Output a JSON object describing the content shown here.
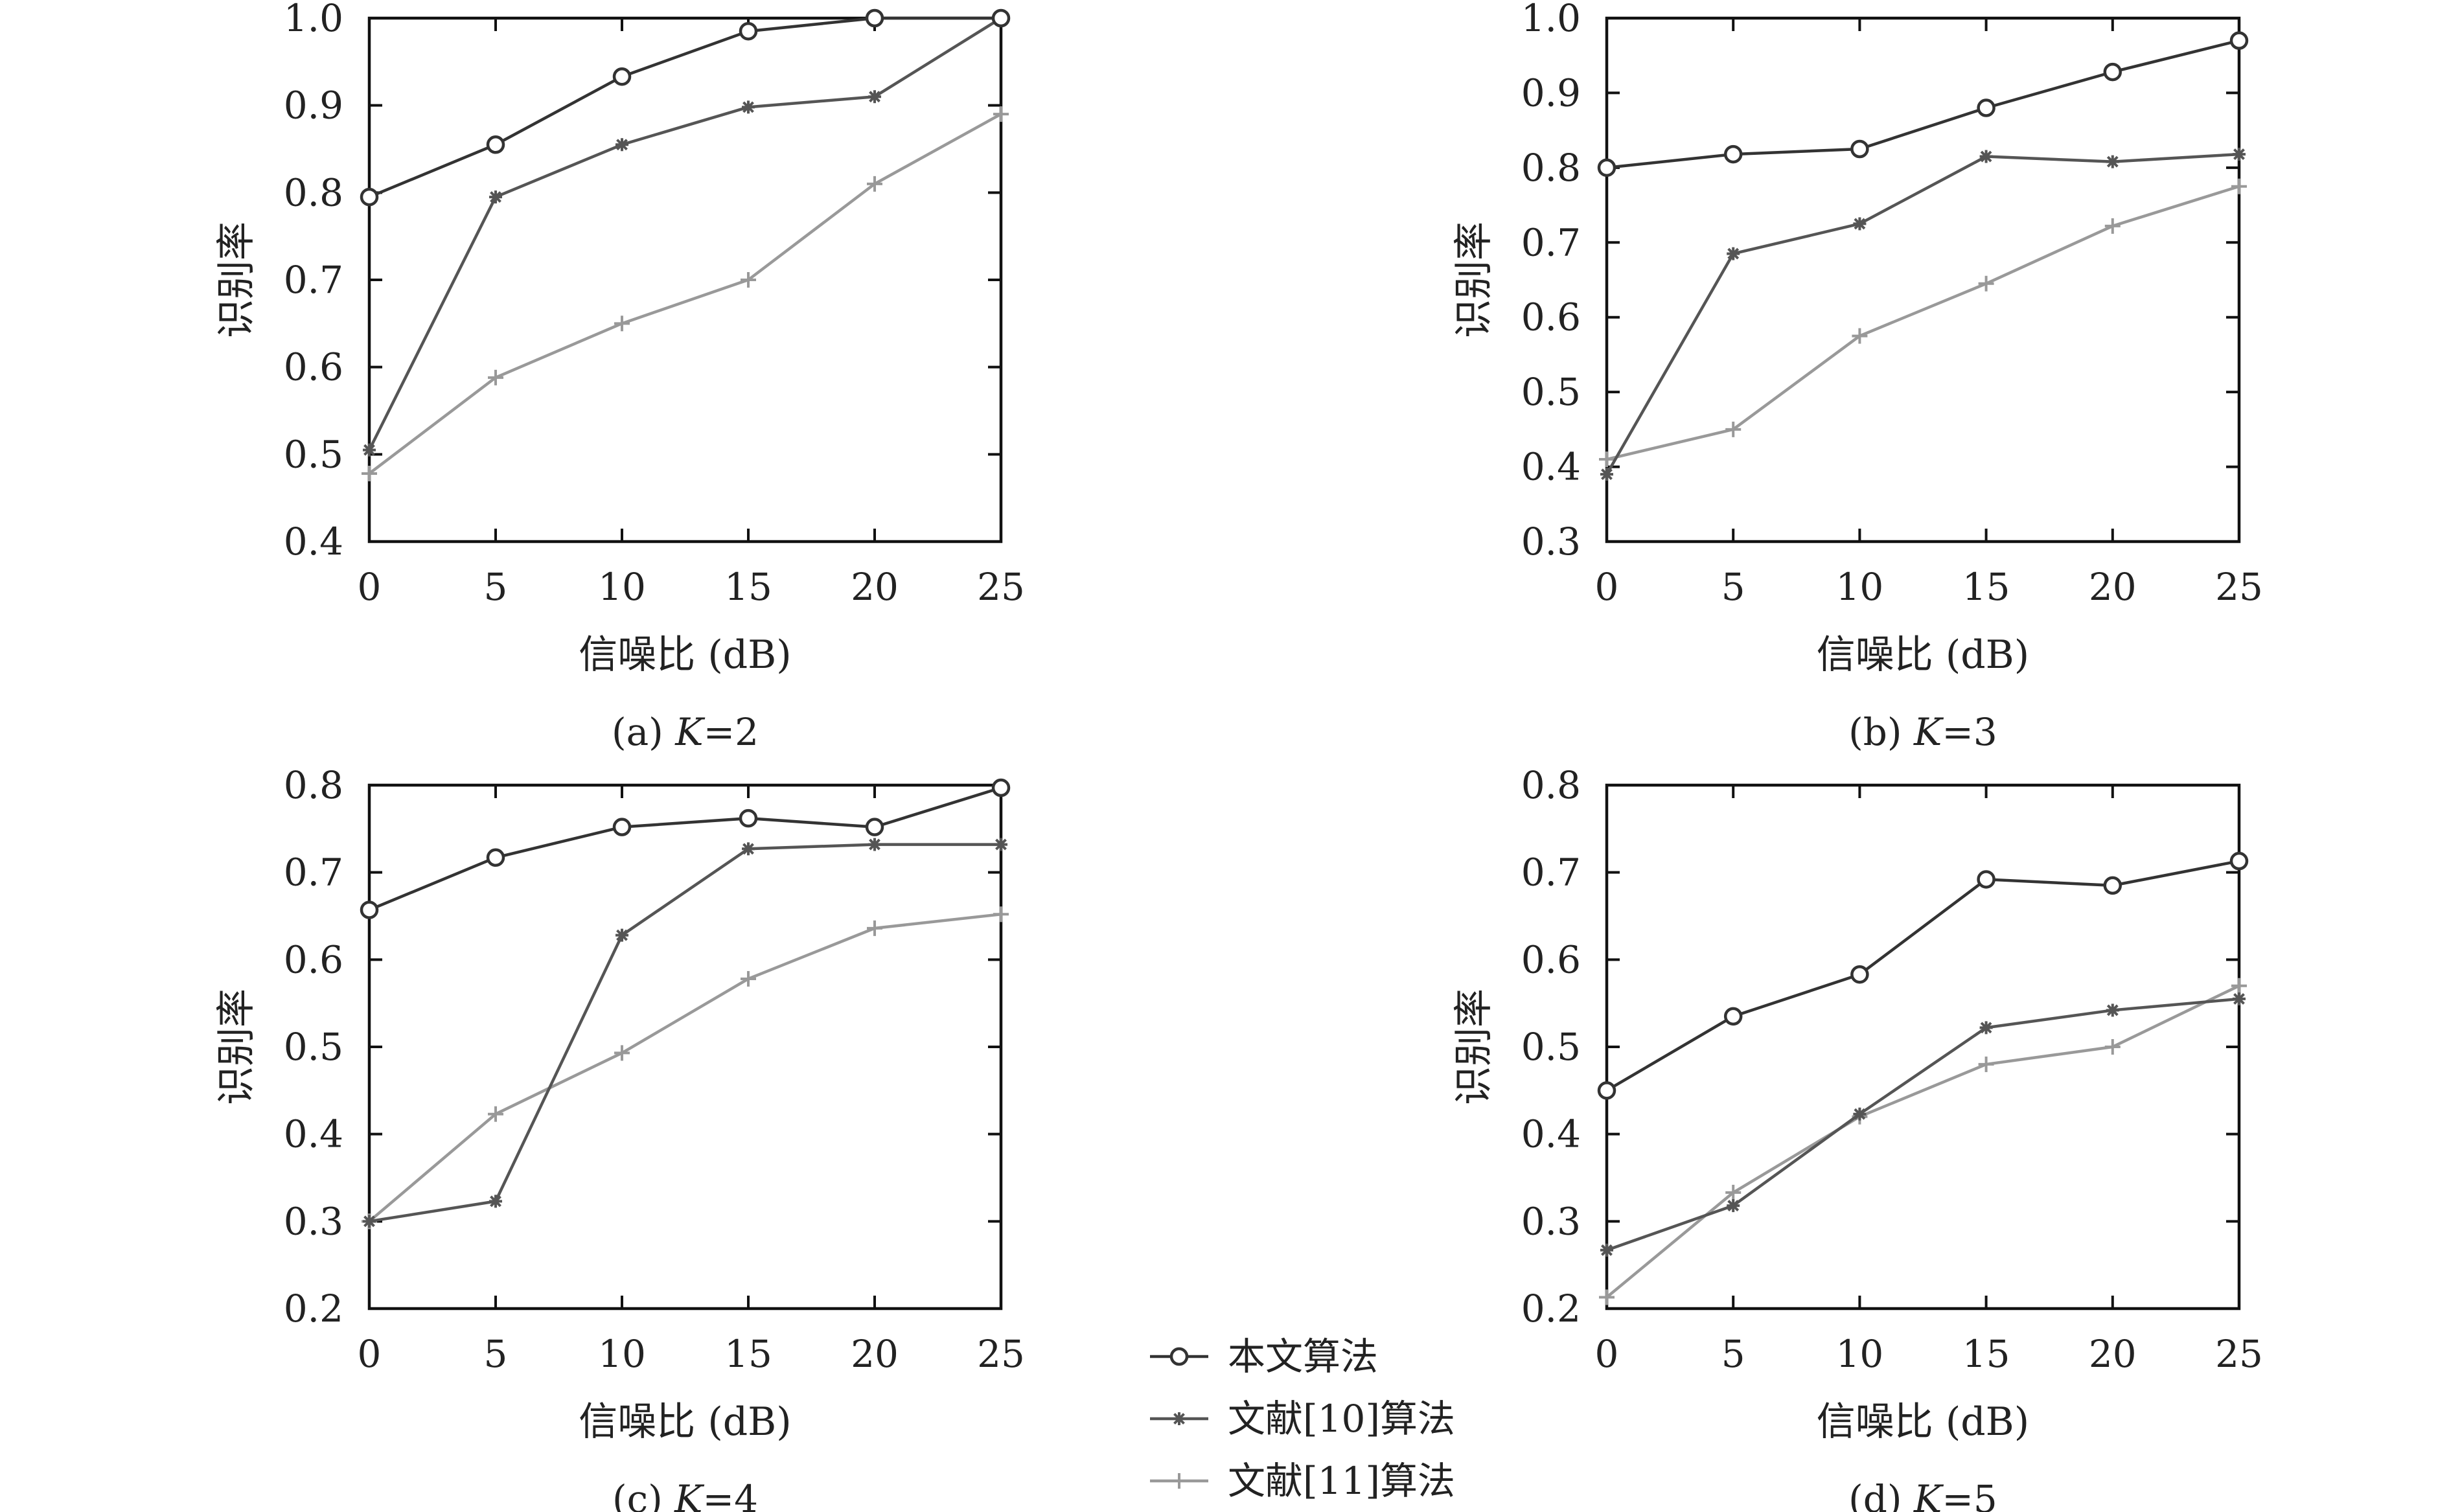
{
  "chart_data": [
    {
      "type": "line",
      "caption": {
        "prefix": "(a) ",
        "k": "K",
        "suffix": "=2"
      },
      "xlabel": "信噪比 (dB)",
      "ylabel": "识别率",
      "x": [
        0,
        5,
        10,
        15,
        20,
        25
      ],
      "xlim": [
        0,
        25
      ],
      "ylim": [
        0.4,
        1.0
      ],
      "xticks": [
        "0",
        "5",
        "10",
        "15",
        "20",
        "25"
      ],
      "yticks": [
        "0.4",
        "0.5",
        "0.6",
        "0.7",
        "0.8",
        "0.9",
        "1.0"
      ],
      "series": [
        {
          "name": "本文算法",
          "values": [
            0.795,
            0.855,
            0.933,
            0.985,
            1.0,
            1.0
          ]
        },
        {
          "name": "文献[10]算法",
          "values": [
            0.505,
            0.795,
            0.855,
            0.898,
            0.91,
            1.0
          ]
        },
        {
          "name": "文献[11]算法",
          "values": [
            0.478,
            0.588,
            0.65,
            0.7,
            0.81,
            0.89
          ]
        }
      ]
    },
    {
      "type": "line",
      "caption": {
        "prefix": "(b) ",
        "k": "K",
        "suffix": "=3"
      },
      "xlabel": "信噪比 (dB)",
      "ylabel": "识别率",
      "x": [
        0,
        5,
        10,
        15,
        20,
        25
      ],
      "xlim": [
        0,
        25
      ],
      "ylim": [
        0.3,
        1.0
      ],
      "xticks": [
        "0",
        "5",
        "10",
        "15",
        "20",
        "25"
      ],
      "yticks": [
        "0.3",
        "0.4",
        "0.5",
        "0.6",
        "0.7",
        "0.8",
        "0.9",
        "1.0"
      ],
      "series": [
        {
          "name": "本文算法",
          "values": [
            0.8,
            0.818,
            0.825,
            0.88,
            0.928,
            0.97
          ]
        },
        {
          "name": "文献[10]算法",
          "values": [
            0.39,
            0.685,
            0.725,
            0.815,
            0.808,
            0.818
          ]
        },
        {
          "name": "文献[11]算法",
          "values": [
            0.41,
            0.45,
            0.575,
            0.645,
            0.722,
            0.775
          ]
        }
      ]
    },
    {
      "type": "line",
      "caption": {
        "prefix": "(c) ",
        "k": "K",
        "suffix": "=4"
      },
      "xlabel": "信噪比 (dB)",
      "ylabel": "识别率",
      "x": [
        0,
        5,
        10,
        15,
        20,
        25
      ],
      "xlim": [
        0,
        25
      ],
      "ylim": [
        0.2,
        0.8
      ],
      "xticks": [
        "0",
        "5",
        "10",
        "15",
        "20",
        "25"
      ],
      "yticks": [
        "0.2",
        "0.3",
        "0.4",
        "0.5",
        "0.6",
        "0.7",
        "0.8"
      ],
      "series": [
        {
          "name": "本文算法",
          "values": [
            0.657,
            0.717,
            0.752,
            0.762,
            0.752,
            0.797
          ]
        },
        {
          "name": "文献[10]算法",
          "values": [
            0.3,
            0.323,
            0.628,
            0.727,
            0.732,
            0.732
          ]
        },
        {
          "name": "文献[11]算法",
          "values": [
            0.3,
            0.423,
            0.493,
            0.578,
            0.636,
            0.652
          ]
        }
      ]
    },
    {
      "type": "line",
      "caption": {
        "prefix": "(d) ",
        "k": "K",
        "suffix": "=5"
      },
      "xlabel": "信噪比 (dB)",
      "ylabel": "识别率",
      "x": [
        0,
        5,
        10,
        15,
        20,
        25
      ],
      "xlim": [
        0,
        25
      ],
      "ylim": [
        0.2,
        0.8
      ],
      "xticks": [
        "0",
        "5",
        "10",
        "15",
        "20",
        "25"
      ],
      "yticks": [
        "0.2",
        "0.3",
        "0.4",
        "0.5",
        "0.6",
        "0.7",
        "0.8"
      ],
      "series": [
        {
          "name": "本文算法",
          "values": [
            0.45,
            0.535,
            0.583,
            0.692,
            0.685,
            0.713
          ]
        },
        {
          "name": "文献[10]算法",
          "values": [
            0.267,
            0.318,
            0.423,
            0.522,
            0.542,
            0.555
          ]
        },
        {
          "name": "文献[11]算法",
          "values": [
            0.213,
            0.333,
            0.42,
            0.48,
            0.5,
            0.57
          ]
        }
      ]
    }
  ],
  "legend": {
    "placement": "bottom-center",
    "items": [
      {
        "label": "本文算法",
        "marker": "circle-marker-icon",
        "color": "#333333"
      },
      {
        "label": "文献[10]算法",
        "marker": "asterisk-marker-icon",
        "color": "#555555"
      },
      {
        "label": "文献[11]算法",
        "marker": "plus-marker-icon",
        "color": "#999999"
      }
    ]
  },
  "colors": {
    "axes": "#111111",
    "series": [
      "#333333",
      "#555555",
      "#999999"
    ]
  }
}
